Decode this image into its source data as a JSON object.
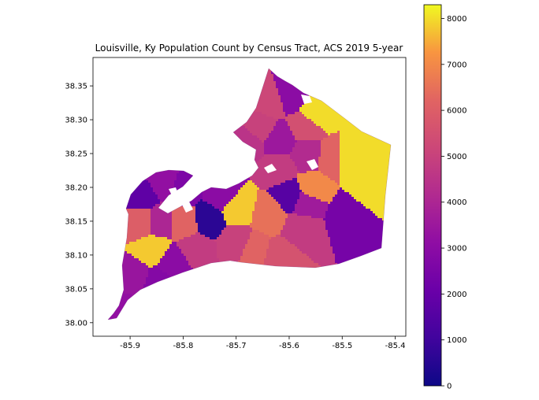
{
  "chart_data": {
    "type": "choropleth",
    "title": "Louisville, Ky Population Count by Census Tract, ACS 2019 5-year",
    "xlabel": "",
    "ylabel": "",
    "xlim": [
      -85.97,
      -85.38
    ],
    "ylim": [
      37.98,
      38.392
    ],
    "x_ticks": [
      -85.9,
      -85.8,
      -85.7,
      -85.6,
      -85.5,
      -85.4
    ],
    "x_tick_labels": [
      "-85.9",
      "-85.8",
      "-85.7",
      "-85.6",
      "-85.5",
      "-85.4"
    ],
    "y_ticks": [
      38.0,
      38.05,
      38.1,
      38.15,
      38.2,
      38.25,
      38.3,
      38.35
    ],
    "y_tick_labels": [
      "38.00",
      "38.05",
      "38.10",
      "38.15",
      "38.20",
      "38.25",
      "38.30",
      "38.35"
    ],
    "colormap": "plasma",
    "colorbar": {
      "min": 0,
      "max": 8300,
      "ticks": [
        0,
        1000,
        2000,
        3000,
        4000,
        5000,
        6000,
        7000,
        8000
      ],
      "tick_labels": [
        "0",
        "1000",
        "2000",
        "3000",
        "4000",
        "5000",
        "6000",
        "7000",
        "8000"
      ]
    },
    "grid": false,
    "tracts_approx": [
      {
        "lon": -85.64,
        "lat": 38.33,
        "value": 5200
      },
      {
        "lon": -85.6,
        "lat": 38.34,
        "value": 3000
      },
      {
        "lon": -85.55,
        "lat": 38.31,
        "value": 8000
      },
      {
        "lon": -85.57,
        "lat": 38.29,
        "value": 5500
      },
      {
        "lon": -85.66,
        "lat": 38.29,
        "value": 5000
      },
      {
        "lon": -85.62,
        "lat": 38.27,
        "value": 3500
      },
      {
        "lon": -85.68,
        "lat": 38.27,
        "value": 4500
      },
      {
        "lon": -85.49,
        "lat": 38.245,
        "value": 8000
      },
      {
        "lon": -85.45,
        "lat": 38.2,
        "value": 8000
      },
      {
        "lon": -85.52,
        "lat": 38.245,
        "value": 6200
      },
      {
        "lon": -85.57,
        "lat": 38.25,
        "value": 4200
      },
      {
        "lon": -85.62,
        "lat": 38.23,
        "value": 4800
      },
      {
        "lon": -85.56,
        "lat": 38.2,
        "value": 7000
      },
      {
        "lon": -85.49,
        "lat": 38.16,
        "value": 2400
      },
      {
        "lon": -85.58,
        "lat": 38.14,
        "value": 4800
      },
      {
        "lon": -85.64,
        "lat": 38.16,
        "value": 6500
      },
      {
        "lon": -85.7,
        "lat": 38.17,
        "value": 7800
      },
      {
        "lon": -85.73,
        "lat": 38.19,
        "value": 3000
      },
      {
        "lon": -85.755,
        "lat": 38.155,
        "value": 600
      },
      {
        "lon": -85.67,
        "lat": 38.11,
        "value": 6200
      },
      {
        "lon": -85.62,
        "lat": 38.1,
        "value": 5600
      },
      {
        "lon": -85.7,
        "lat": 38.12,
        "value": 5000
      },
      {
        "lon": -85.78,
        "lat": 38.11,
        "value": 4800
      },
      {
        "lon": -85.82,
        "lat": 38.09,
        "value": 3000
      },
      {
        "lon": -85.85,
        "lat": 38.06,
        "value": 2800
      },
      {
        "lon": -85.895,
        "lat": 38.07,
        "value": 3400
      },
      {
        "lon": -85.92,
        "lat": 38.02,
        "value": 3200
      },
      {
        "lon": -85.86,
        "lat": 38.11,
        "value": 7800
      },
      {
        "lon": -85.88,
        "lat": 38.15,
        "value": 6000
      },
      {
        "lon": -85.85,
        "lat": 38.15,
        "value": 4000
      },
      {
        "lon": -85.88,
        "lat": 38.19,
        "value": 1800
      },
      {
        "lon": -85.84,
        "lat": 38.21,
        "value": 3200
      },
      {
        "lon": -85.8,
        "lat": 38.2,
        "value": 2600
      },
      {
        "lon": -85.8,
        "lat": 38.15,
        "value": 6200
      },
      {
        "lon": -85.6,
        "lat": 38.19,
        "value": 1600
      },
      {
        "lon": -85.57,
        "lat": 38.18,
        "value": 3600
      }
    ]
  }
}
